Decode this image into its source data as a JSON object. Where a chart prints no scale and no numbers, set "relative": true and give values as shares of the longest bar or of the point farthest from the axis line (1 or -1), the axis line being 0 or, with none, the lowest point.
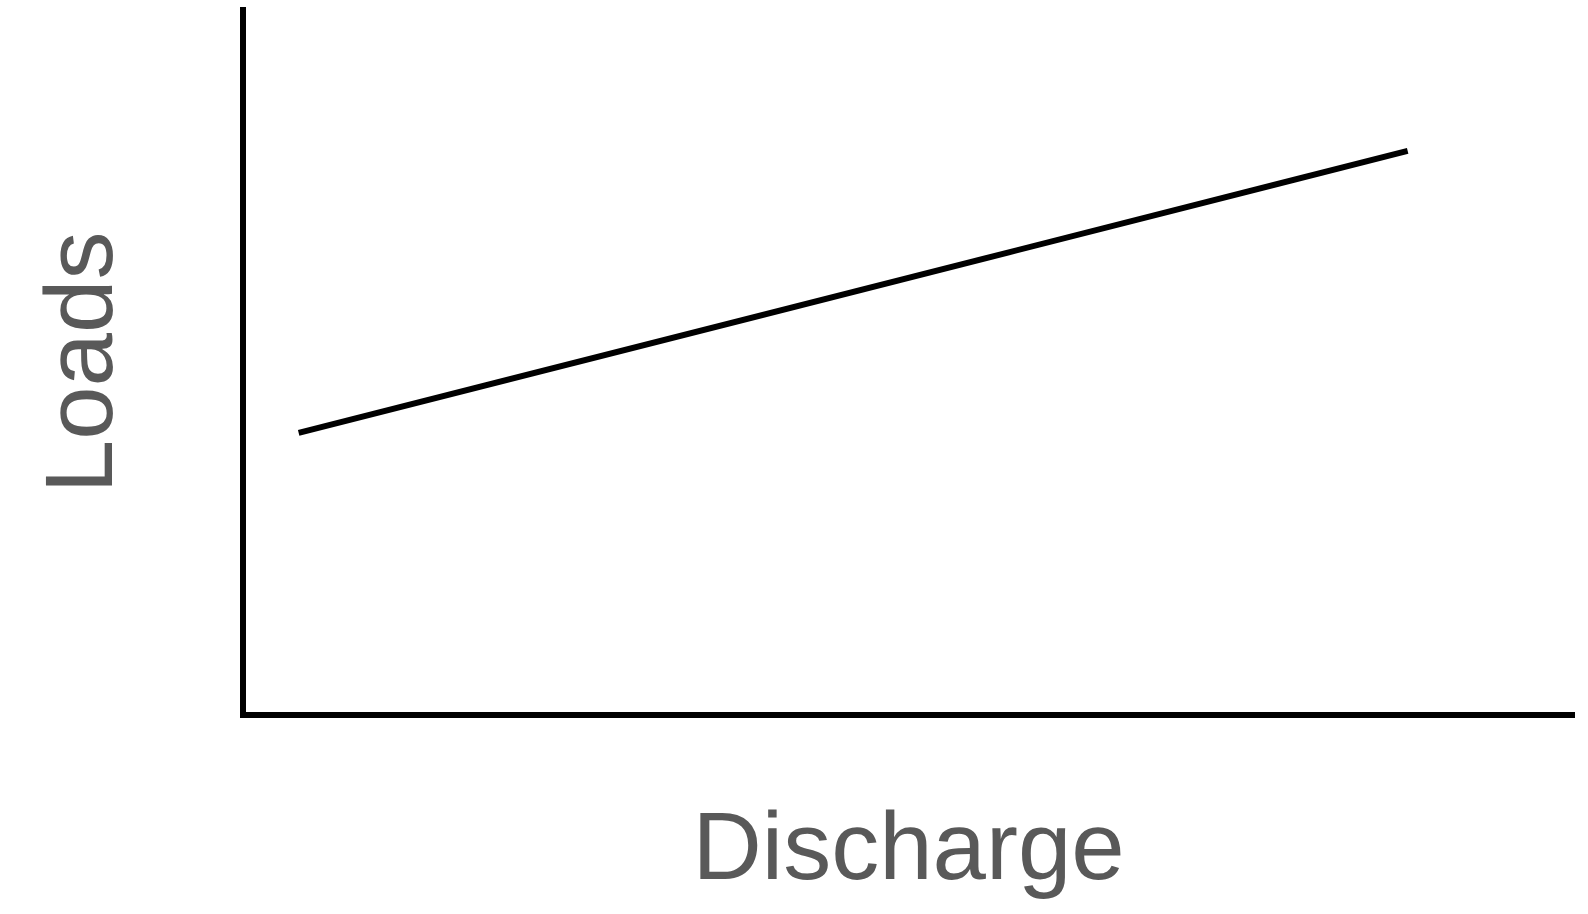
{
  "chart_data": {
    "type": "line",
    "xlabel": "Discharge",
    "ylabel": "Loads",
    "categories": [
      null,
      null,
      null,
      null,
      null,
      null,
      null,
      null,
      null,
      null,
      null,
      null
    ],
    "relative": true,
    "marker": "none",
    "series": [
      {
        "color": "#000000",
        "values": [
          0.5,
          null,
          null,
          null,
          null,
          null,
          null,
          null,
          null,
          null,
          1,
          null
        ]
      }
    ]
  }
}
